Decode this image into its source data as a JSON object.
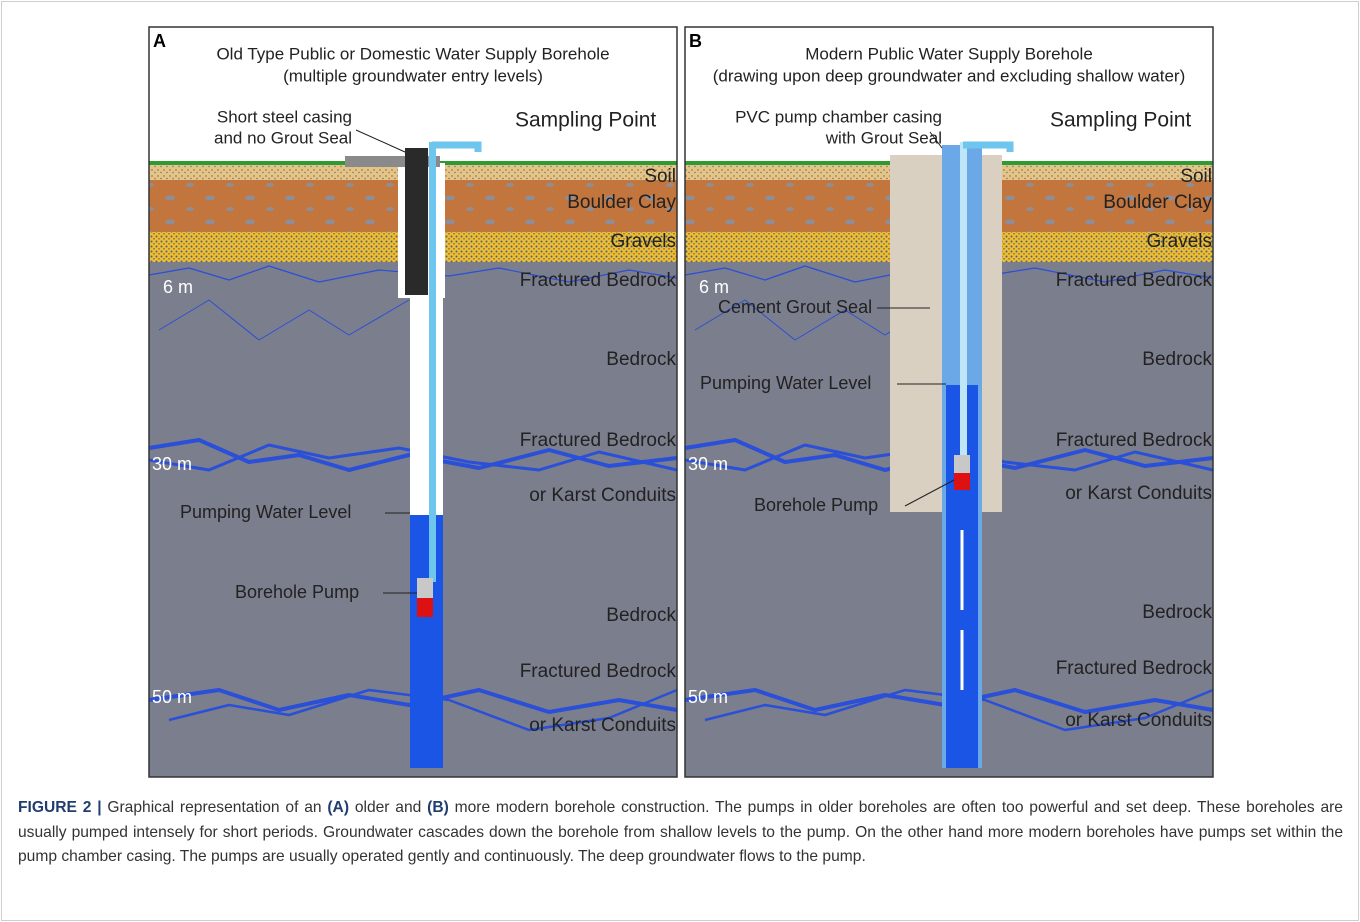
{
  "panels": [
    {
      "letter": "A",
      "title": [
        "Old Type Public or Domestic Water Supply Borehole",
        "(multiple groundwater entry levels)"
      ],
      "casing_label": [
        "Short steel casing",
        "and no Grout  Seal"
      ],
      "sampling": "Sampling Point",
      "strata": [
        "Soil",
        "Boulder Clay",
        "Gravels",
        "Fractured Bedrock",
        "Bedrock",
        "Fractured Bedrock",
        "or Karst Conduits",
        "Bedrock",
        "Fractured Bedrock",
        "or Karst Conduits"
      ],
      "depths": [
        "6 m",
        "30 m",
        "50 m"
      ],
      "callouts": [
        "Pumping Water Level",
        "Borehole Pump"
      ]
    },
    {
      "letter": "B",
      "title": [
        "Modern Public Water Supply Borehole",
        "(drawing upon deep groundwater and excluding shallow water)"
      ],
      "casing_label": [
        "PVC pump chamber casing",
        "with Grout Seal"
      ],
      "sampling": "Sampling Point",
      "strata": [
        "Soil",
        "Boulder Clay",
        "Gravels",
        "Fractured Bedrock",
        "Bedrock",
        "Fractured Bedrock",
        "or Karst Conduits",
        "Bedrock",
        "Fractured Bedrock",
        "or Karst Conduits"
      ],
      "depths": [
        "6 m",
        "30 m",
        "50 m"
      ],
      "callouts": [
        "Cement Grout Seal",
        "Pumping Water Level",
        "Borehole Pump"
      ]
    }
  ],
  "caption": [
    {
      "text": "FIGURE 2 |",
      "bold": true
    },
    {
      "text": " Graphical representation of an ",
      "bold": false
    },
    {
      "text": "(A)",
      "bold": true
    },
    {
      "text": " older and ",
      "bold": false
    },
    {
      "text": "(B)",
      "bold": true
    },
    {
      "text": " more modern borehole construction. The pumps in older boreholes are often too powerful and set deep. These boreholes are usually pumped intensely for short periods. Groundwater cascades down the borehole from shallow levels to the pump. On the other hand more modern boreholes have pumps set within the pump chamber casing. The pumps are usually operated gently and continuously. The deep groundwater flows to the pump.",
      "bold": false
    }
  ]
}
